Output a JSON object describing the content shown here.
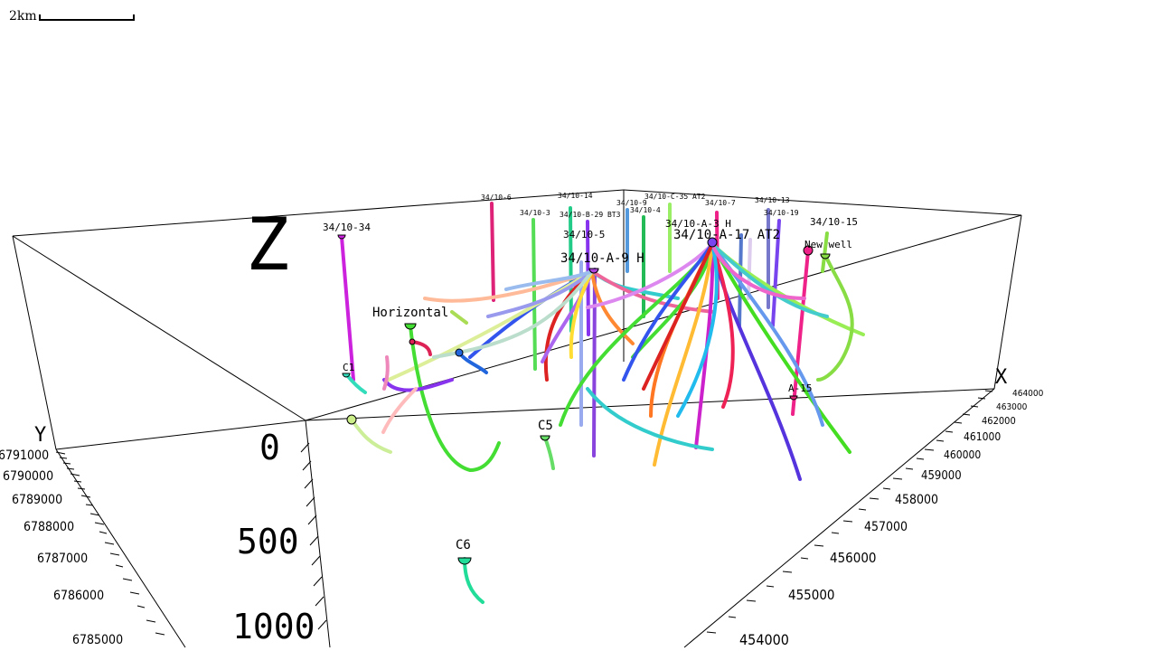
{
  "scale_bar": {
    "label": "2km"
  },
  "axes": {
    "z_label": "Z",
    "y_label": "Y",
    "x_label": "X",
    "z_ticks": [
      "0",
      "500",
      "1000"
    ],
    "y_ticks": [
      "6791000",
      "6790000",
      "6789000",
      "6788000",
      "6787000",
      "6786000",
      "6785000"
    ],
    "x_ticks": [
      "464000",
      "463000",
      "462000",
      "461000",
      "460000",
      "459000",
      "458000",
      "457000",
      "456000",
      "455000",
      "454000"
    ]
  },
  "wells": [
    {
      "label": "34/10-34",
      "color": "#cc22dd"
    },
    {
      "label": "34/10-6",
      "color": "#dd2277"
    },
    {
      "label": "34/10-14",
      "color": "#22cc88"
    },
    {
      "label": "34/10-3",
      "color": "#55dd55"
    },
    {
      "label": "34/10-B-29 BT3",
      "color": "#8833ee"
    },
    {
      "label": "34/10-9",
      "color": "#5599dd"
    },
    {
      "label": "34/10-C-35 AT2",
      "color": "#99ee66"
    },
    {
      "label": "34/10-4",
      "color": "#22bb55"
    },
    {
      "label": "34/10-7",
      "color": "#ee2288"
    },
    {
      "label": "34/10-13",
      "color": "#7777cc"
    },
    {
      "label": "34/10-19",
      "color": "#7744ee"
    },
    {
      "label": "34/10-15",
      "color": "#88dd44"
    },
    {
      "label": "34/10-5",
      "color": "#3366dd"
    },
    {
      "label": "34/10-A-3 H",
      "color": "#2266ee"
    },
    {
      "label": "34/10-A-17 AT2",
      "color": "#6633dd"
    },
    {
      "label": "34/10-A-9 H",
      "color": "#aa44dd"
    },
    {
      "label": "New well",
      "color": "#ee2288"
    },
    {
      "label": "Horizontal",
      "color": "#44dd33"
    },
    {
      "label": "C1",
      "color": "#33ddbb"
    },
    {
      "label": "C5",
      "color": "#66dd66"
    },
    {
      "label": "C6",
      "color": "#22dd99"
    },
    {
      "label": "A-15",
      "color": "#dd2277"
    }
  ]
}
